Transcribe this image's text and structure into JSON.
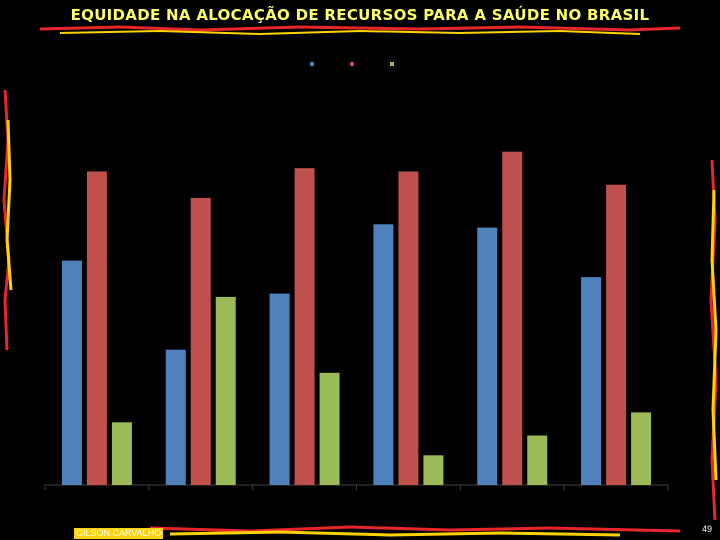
{
  "slide": {
    "title": "EQUIDADE NA ALOCAÇÃO DE RECURSOS PARA A SAÚDE NO BRASIL",
    "author": "GILSON CARVALHO",
    "page_number": "49"
  },
  "colors": {
    "background": "#000000",
    "title": "#FFFF66",
    "decoration_red": "#E8262A",
    "decoration_yellow": "#FFD200",
    "series": [
      "#4F81BD",
      "#C0504D",
      "#9BBB59"
    ]
  },
  "chart_data": {
    "type": "bar",
    "title": "",
    "xlabel": "",
    "ylabel": "",
    "legend_position": "top-center",
    "grid": false,
    "categories": [
      "",
      "",
      "",
      "",
      "",
      ""
    ],
    "ylim": [
      0,
      100
    ],
    "series": [
      {
        "color": "#4F81BD",
        "values": [
          68,
          41,
          58,
          79,
          78,
          63
        ]
      },
      {
        "color": "#C0504D",
        "values": [
          95,
          87,
          96,
          95,
          101,
          91
        ]
      },
      {
        "color": "#9BBB59",
        "values": [
          19,
          57,
          34,
          9,
          15,
          22
        ]
      }
    ]
  }
}
